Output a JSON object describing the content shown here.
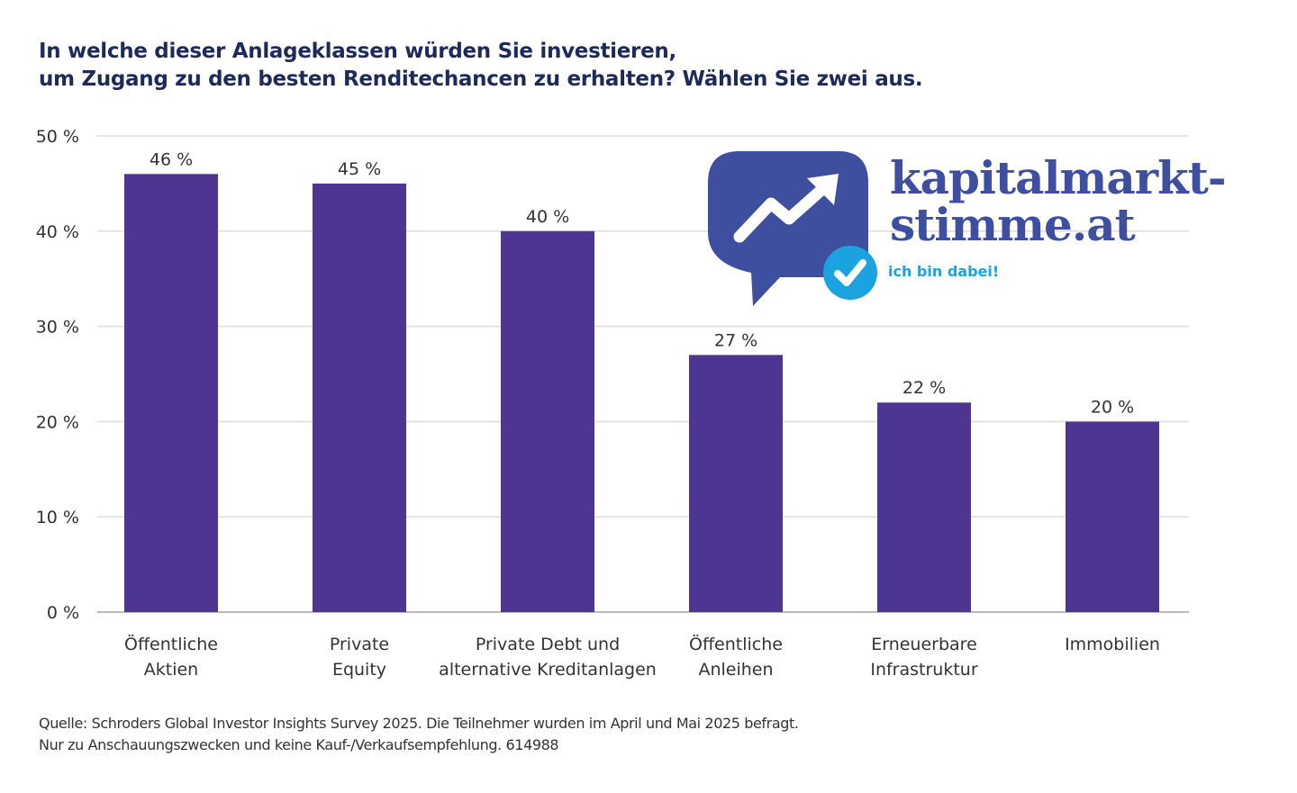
{
  "chart_data": {
    "type": "bar",
    "title": "In welche dieser Anlageklassen würden Sie investieren, um Zugang zu den besten Renditechancen zu erhalten? Wählen Sie zwei aus.",
    "title_lines": [
      "In welche dieser Anlageklassen würden Sie investieren,",
      "um Zugang zu den besten Renditechancen zu erhalten? Wählen Sie zwei aus."
    ],
    "categories": [
      [
        "Öffentliche",
        "Aktien"
      ],
      [
        "Private",
        "Equity"
      ],
      [
        "Private Debt und",
        "alternative Kreditanlagen"
      ],
      [
        "Öffentliche",
        "Anleihen"
      ],
      [
        "Erneuerbare",
        "Infrastruktur"
      ],
      [
        "Immobilien"
      ]
    ],
    "values": [
      46,
      45,
      40,
      27,
      22,
      20
    ],
    "data_labels": [
      "46 %",
      "45 %",
      "40 %",
      "27 %",
      "22 %",
      "20 %"
    ],
    "ylim": [
      0,
      50
    ],
    "yticks": [
      "0 %",
      "10 %",
      "20 %",
      "30 %",
      "40 %",
      "50 %"
    ],
    "grid": true,
    "bar_color": "#4e3592",
    "xlabel": "",
    "ylabel": ""
  },
  "source": [
    "Quelle: Schroders Global Investor Insights Survey 2025. Die Teilnehmer wurden im April und Mai 2025 befragt.",
    "Nur zu Anschauungszwecken und keine Kauf-/Verkaufsempfehlung. 614988"
  ],
  "watermark": {
    "line1": "kapitalmarkt-",
    "line2": "stimme.at",
    "tagline": "ich bin dabei!",
    "color": "#3f4fa0",
    "accent": "#1aa3e0"
  }
}
